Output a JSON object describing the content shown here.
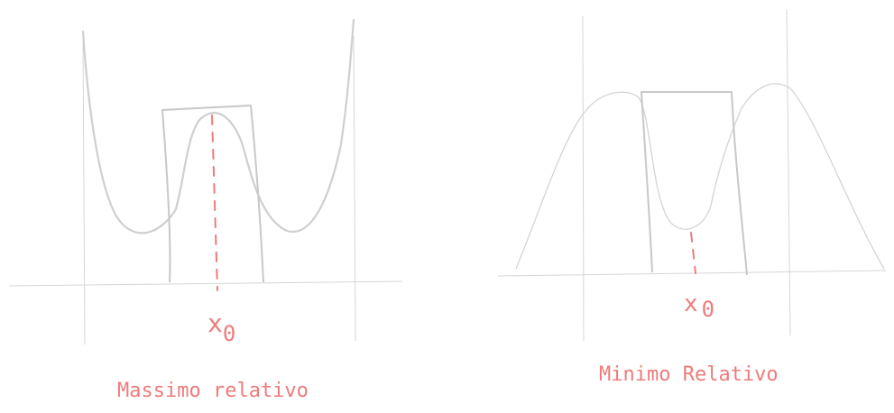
{
  "diagrams": [
    {
      "point_label": "x",
      "point_subscript": "0",
      "caption": "Massimo relativo"
    },
    {
      "point_label": "x",
      "point_subscript": "0",
      "caption": "Minimo Relativo"
    }
  ],
  "colors": {
    "annotation": "#ee7b7b",
    "curve": "#cfcfcf",
    "axis": "#d6d6d6"
  }
}
